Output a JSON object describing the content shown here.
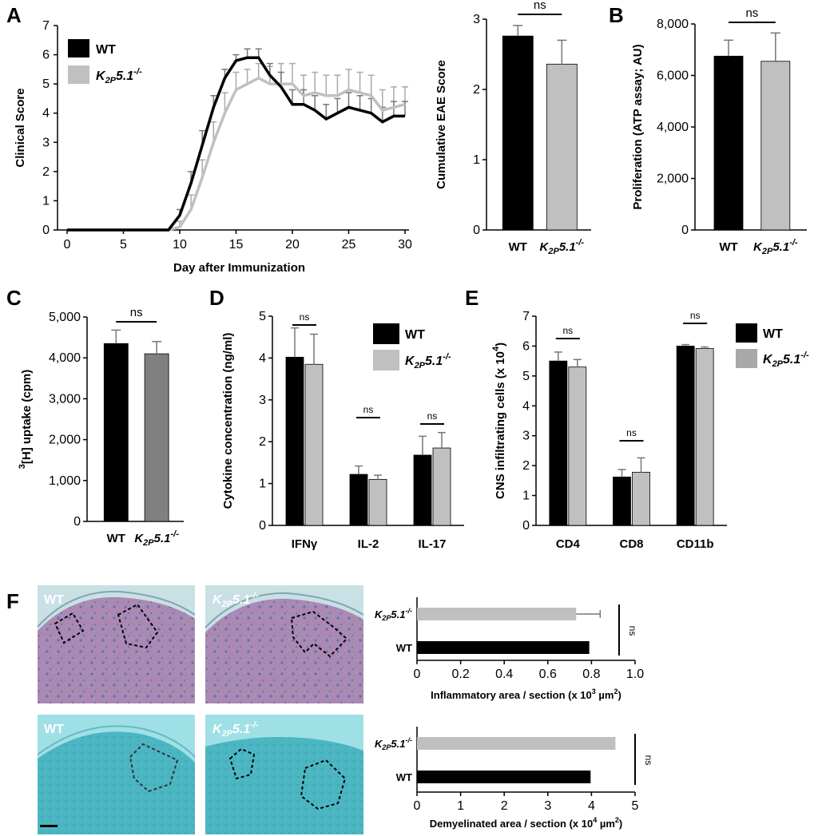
{
  "colors": {
    "wt": "#000000",
    "ko": "#c0c0c0",
    "ko_dark": "#808080",
    "err": "#888888"
  },
  "labels": {
    "wt": "WT",
    "ko": "K",
    "ko_sub": "2P",
    "ko_tail": "5.1",
    "ko_sup": "-/-"
  },
  "chart_data": [
    {
      "id": "A-line",
      "panel": "A",
      "type": "line",
      "xlabel": "Day after Immunization",
      "ylabel": "Clinical Score",
      "xlim": [
        0,
        30
      ],
      "ylim": [
        0,
        7
      ],
      "xticks": [
        0,
        5,
        10,
        15,
        20,
        25,
        30
      ],
      "yticks": [
        0,
        1,
        2,
        3,
        4,
        5,
        6,
        7
      ],
      "x": [
        0,
        1,
        2,
        3,
        4,
        5,
        6,
        7,
        8,
        9,
        10,
        11,
        12,
        13,
        14,
        15,
        16,
        17,
        18,
        19,
        20,
        21,
        22,
        23,
        24,
        25,
        26,
        27,
        28,
        29,
        30
      ],
      "series": [
        {
          "name": "WT",
          "values": [
            0,
            0,
            0,
            0,
            0,
            0,
            0,
            0,
            0,
            0,
            0.5,
            1.6,
            2.9,
            4.2,
            5.2,
            5.8,
            5.9,
            5.9,
            5.3,
            4.9,
            4.3,
            4.3,
            4.1,
            3.8,
            4.0,
            4.2,
            4.1,
            4.0,
            3.7,
            3.9,
            3.9
          ],
          "errors": [
            0,
            0,
            0,
            0,
            0,
            0,
            0,
            0,
            0,
            0,
            0.2,
            0.4,
            0.5,
            0.4,
            0.3,
            0.2,
            0.3,
            0.3,
            0.4,
            0.5,
            0.5,
            0.5,
            0.5,
            0.5,
            0.5,
            0.5,
            0.5,
            0.5,
            0.5,
            0.5,
            0.5
          ]
        },
        {
          "name": "K2P5.1-/-",
          "values": [
            0,
            0,
            0,
            0,
            0,
            0,
            0,
            0,
            0,
            0,
            0.1,
            0.7,
            1.8,
            3.0,
            4.0,
            4.8,
            5.0,
            5.2,
            5.0,
            5.0,
            5.0,
            4.6,
            4.7,
            4.6,
            4.6,
            4.8,
            4.7,
            4.6,
            4.1,
            4.2,
            4.3
          ],
          "errors": [
            0,
            0,
            0,
            0,
            0,
            0,
            0,
            0,
            0,
            0,
            0.2,
            0.5,
            0.6,
            0.7,
            0.7,
            0.6,
            0.5,
            0.5,
            0.6,
            0.7,
            0.7,
            0.7,
            0.7,
            0.7,
            0.7,
            0.7,
            0.7,
            0.7,
            0.7,
            0.7,
            0.6
          ]
        }
      ]
    },
    {
      "id": "A-bar",
      "panel": "A",
      "type": "bar",
      "ylabel": "Cumulative EAE Score",
      "ylim": [
        0,
        3
      ],
      "yticks": [
        0,
        1,
        2,
        3
      ],
      "series": [
        {
          "name": "WT",
          "values": [
            2.76
          ],
          "errors": [
            0.15
          ]
        },
        {
          "name": "K2P5.1-/-",
          "values": [
            2.36
          ],
          "errors": [
            0.34
          ]
        }
      ],
      "annotations": [
        "ns"
      ]
    },
    {
      "id": "B",
      "panel": "B",
      "type": "bar",
      "ylabel": "Proliferation (ATP assay; AU)",
      "ylim": [
        0,
        8000
      ],
      "yticks": [
        0,
        2000,
        4000,
        6000,
        8000
      ],
      "ytick_labels": [
        "0",
        "2,000",
        "4,000",
        "6,000",
        "8,000"
      ],
      "series": [
        {
          "name": "WT",
          "values": [
            6750
          ],
          "errors": [
            620
          ]
        },
        {
          "name": "K2P5.1-/-",
          "values": [
            6550
          ],
          "errors": [
            1100
          ]
        }
      ],
      "annotations": [
        "ns"
      ]
    },
    {
      "id": "C",
      "panel": "C",
      "type": "bar",
      "ylabel": "[H] uptake (cpm)",
      "ylabel_sup": "3",
      "ylim": [
        0,
        5000
      ],
      "yticks": [
        0,
        1000,
        2000,
        3000,
        4000,
        5000
      ],
      "ytick_labels": [
        "0",
        "1,000",
        "2,000",
        "3,000",
        "4,000",
        "5,000"
      ],
      "series": [
        {
          "name": "WT",
          "values": [
            4350
          ],
          "errors": [
            330
          ]
        },
        {
          "name": "K2P5.1-/-",
          "values": [
            4100
          ],
          "errors": [
            300
          ]
        }
      ],
      "annotations": [
        "ns"
      ]
    },
    {
      "id": "D",
      "panel": "D",
      "type": "bar",
      "ylabel": "Cytokine concentration (ng/ml)",
      "ylim": [
        0,
        5
      ],
      "yticks": [
        0,
        1,
        2,
        3,
        4,
        5
      ],
      "categories": [
        "IFNγ",
        "IL-2",
        "IL-17"
      ],
      "series": [
        {
          "name": "WT",
          "values": [
            4.02,
            1.22,
            1.68
          ],
          "errors": [
            0.7,
            0.2,
            0.45
          ]
        },
        {
          "name": "K2P5.1-/-",
          "values": [
            3.85,
            1.1,
            1.85
          ],
          "errors": [
            0.72,
            0.1,
            0.37
          ]
        }
      ],
      "annotations": [
        "ns",
        "ns",
        "ns"
      ]
    },
    {
      "id": "E",
      "panel": "E",
      "type": "bar",
      "ylabel": "CNS infiltrating cells (x 10",
      "ylabel_sup": "4",
      "ylabel_tail": ")",
      "ylim": [
        0,
        7
      ],
      "yticks": [
        0,
        1,
        2,
        3,
        4,
        5,
        6,
        7
      ],
      "categories": [
        "CD4",
        "CD8",
        "CD11b"
      ],
      "series": [
        {
          "name": "WT",
          "values": [
            5.5,
            1.62,
            6.0
          ],
          "errors": [
            0.3,
            0.25,
            0.05
          ]
        },
        {
          "name": "K2P5.1-/-",
          "values": [
            5.3,
            1.78,
            5.92
          ],
          "errors": [
            0.25,
            0.48,
            0.05
          ]
        }
      ],
      "annotations": [
        "ns",
        "ns",
        "ns"
      ]
    },
    {
      "id": "F-top",
      "panel": "F",
      "type": "bar",
      "orientation": "horizontal",
      "xlabel": "Inflammatory area / section (x 10",
      "xlabel_sup": "3",
      "xlabel_tail": " µm",
      "xlabel_sup2": "2",
      "xlabel_end": ")",
      "xlim": [
        0,
        1.0
      ],
      "xticks": [
        0,
        0.2,
        0.4,
        0.6,
        0.8,
        1.0
      ],
      "xtick_labels": [
        "0",
        "0.2",
        "0.4",
        "0.6",
        "0.8",
        "1.0"
      ],
      "categories": [
        "K2P5.1-/-",
        "WT"
      ],
      "values": [
        0.73,
        0.79
      ],
      "errors": [
        0.11,
        0.0
      ],
      "annotations": [
        "ns"
      ]
    },
    {
      "id": "F-bottom",
      "panel": "F",
      "type": "bar",
      "orientation": "horizontal",
      "xlabel": "Demyelinated area / section (x 10",
      "xlabel_sup": "4",
      "xlabel_tail": " µm",
      "xlabel_sup2": "2",
      "xlabel_end": ")",
      "xlim": [
        0,
        5
      ],
      "xticks": [
        0,
        1,
        2,
        3,
        4,
        5
      ],
      "xtick_labels": [
        "0",
        "1",
        "2",
        "3",
        "4",
        "5"
      ],
      "categories": [
        "K2P5.1-/-",
        "WT"
      ],
      "values": [
        4.55,
        3.98
      ],
      "errors": [
        0.0,
        0.0
      ],
      "annotations": [
        "ns"
      ]
    }
  ],
  "panel_letters": {
    "A": "A",
    "B": "B",
    "C": "C",
    "D": "D",
    "E": "E",
    "F": "F"
  },
  "micrographs": [
    {
      "id": "he-wt",
      "label": "WT"
    },
    {
      "id": "he-ko",
      "label": "K",
      "sub": "2P",
      "tail": "5.1",
      "sup": "-/-"
    },
    {
      "id": "lfb-wt",
      "label": "WT"
    },
    {
      "id": "lfb-ko",
      "label": "K",
      "sub": "2P",
      "tail": "5.1",
      "sup": "-/-"
    }
  ],
  "scale_bar": "scale-bar"
}
